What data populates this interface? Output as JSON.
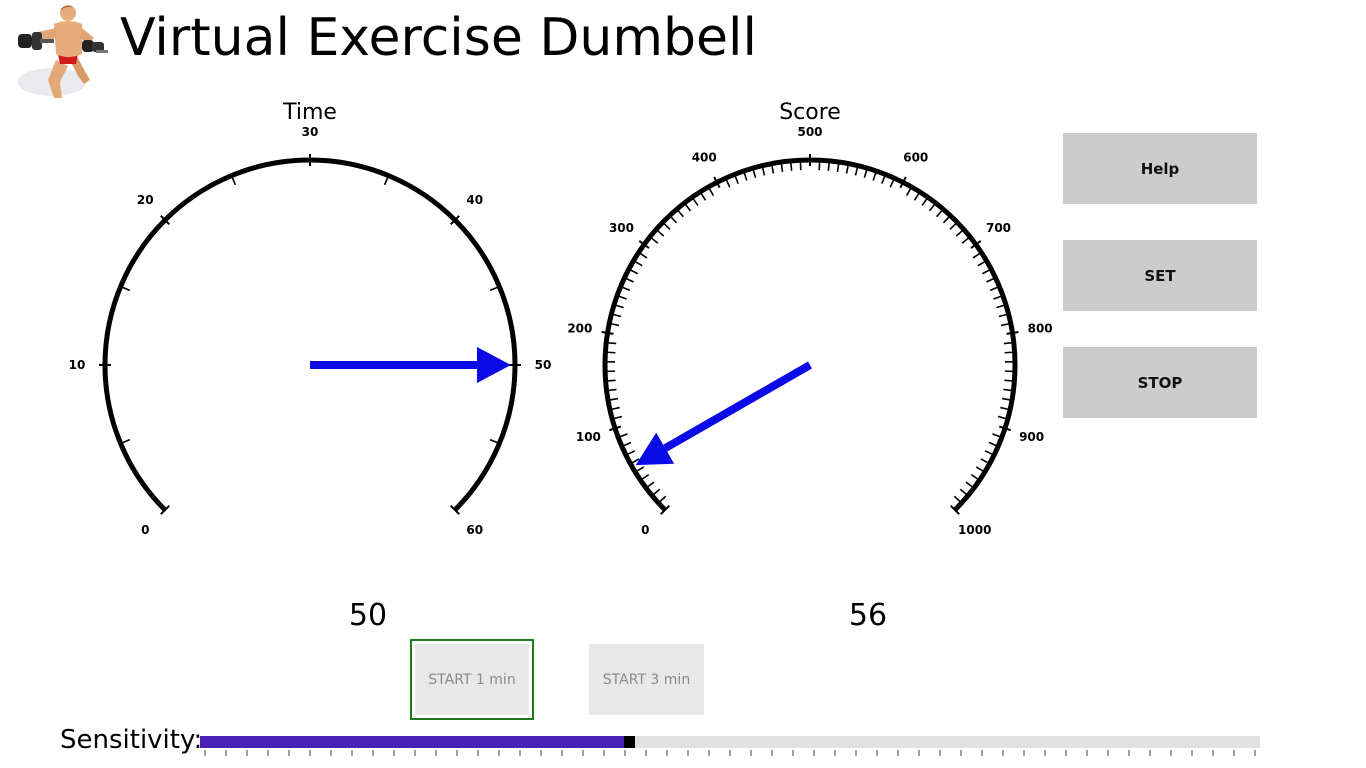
{
  "app": {
    "title": "Virtual Exercise Dumbell"
  },
  "time_gauge": {
    "title": "Time",
    "min": 0,
    "max": 60,
    "major_step": 10,
    "minor_step": 5,
    "labels": [
      "0",
      "10",
      "20",
      "30",
      "40",
      "50",
      "60"
    ],
    "value": 50,
    "readout": "50",
    "needle_color": "#0a0ae6"
  },
  "score_gauge": {
    "title": "Score",
    "min": 0,
    "max": 1000,
    "major_step": 100,
    "minor_step": 10,
    "labels": [
      "0",
      "100",
      "200",
      "300",
      "400",
      "500",
      "600",
      "700",
      "800",
      "900",
      "1000"
    ],
    "value": 56,
    "readout": "56",
    "needle_color": "#0a0ae6"
  },
  "buttons": {
    "help": "Help",
    "set": "SET",
    "stop": "STOP",
    "start_1": "START 1 min",
    "start_3": "START 3 min"
  },
  "sensitivity": {
    "label": "Sensitivity:",
    "value_fraction": 0.4,
    "fill_color": "#4a1fb8",
    "tick_count": 50
  }
}
